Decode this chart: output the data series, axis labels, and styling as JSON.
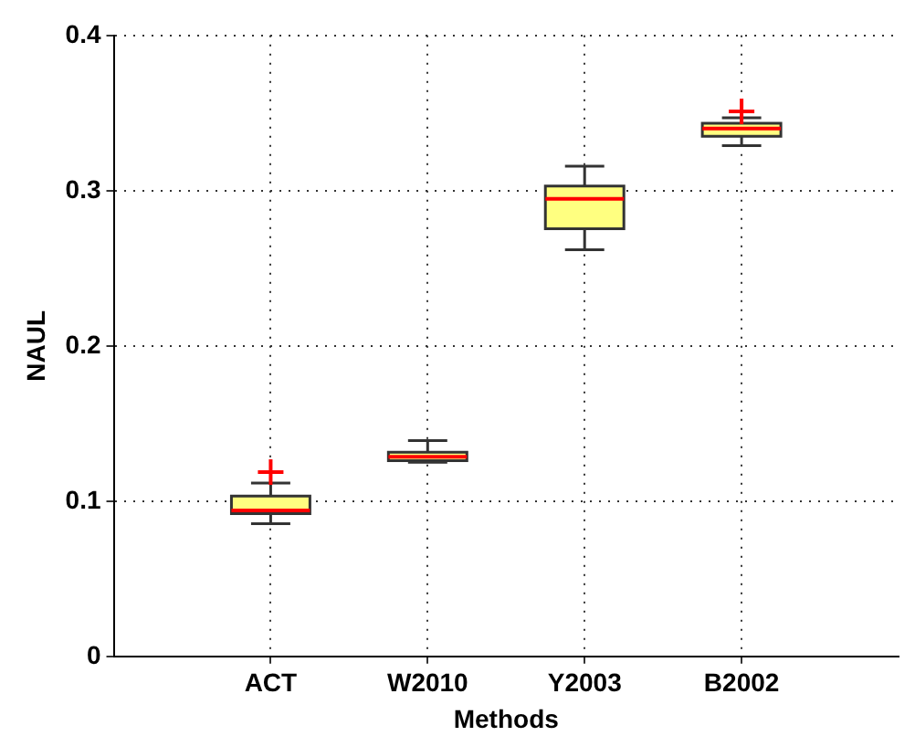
{
  "chart_data": {
    "type": "box",
    "xlabel": "Methods",
    "ylabel": "NAUL",
    "categories": [
      "ACT",
      "W2010",
      "Y2003",
      "B2002"
    ],
    "series": [
      {
        "color": "#ffff80",
        "boxes": [
          {
            "low": 0.0855,
            "q1": 0.092,
            "median": 0.094,
            "q3": 0.1033,
            "high": 0.1117,
            "outliers": [
              0.1187
            ]
          },
          {
            "low": 0.125,
            "q1": 0.126,
            "median": 0.1285,
            "q3": 0.1315,
            "high": 0.139
          },
          {
            "low": 0.262,
            "q1": 0.2755,
            "median": 0.2948,
            "q3": 0.303,
            "high": 0.3157
          },
          {
            "low": 0.329,
            "q1": 0.335,
            "median": 0.34,
            "q3": 0.3434,
            "high": 0.347,
            "outliers": [
              0.351
            ]
          }
        ]
      }
    ],
    "ylim": [
      0,
      0.4
    ],
    "yticks": [
      0,
      0.1,
      0.2,
      0.3,
      0.4
    ],
    "grid": true,
    "line_style": "dotted"
  }
}
